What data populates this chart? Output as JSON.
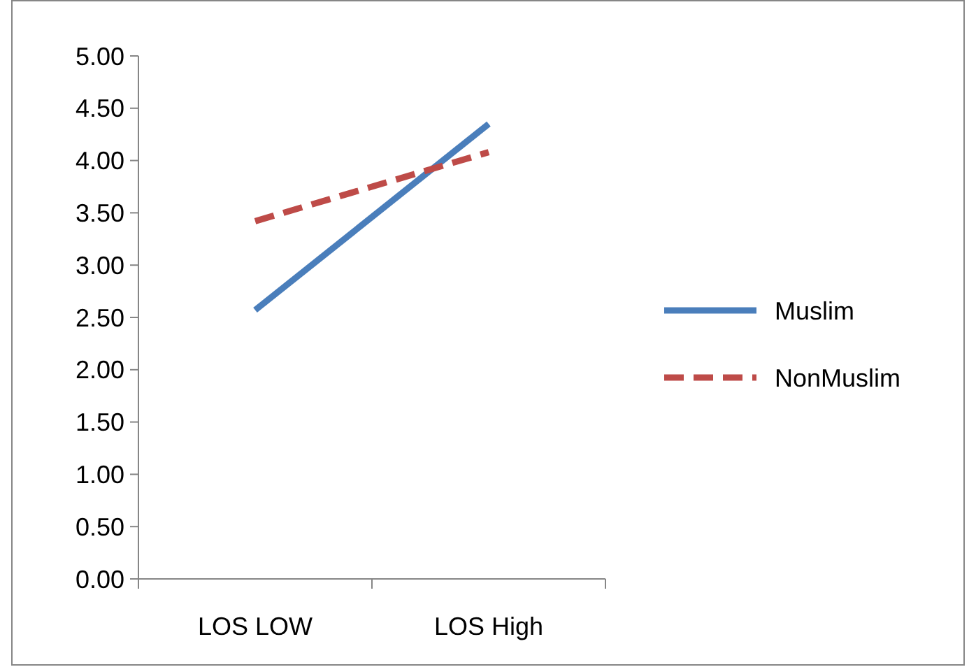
{
  "chart_data": {
    "type": "line",
    "categories": [
      "LOS LOW",
      "LOS High"
    ],
    "series": [
      {
        "name": "Muslim",
        "color": "#4a7ebb",
        "values": [
          2.57,
          4.35
        ],
        "line_style": "solid"
      },
      {
        "name": "NonMuslim",
        "color": "#be4b48",
        "values": [
          3.42,
          4.08
        ],
        "line_style": "dashed"
      }
    ],
    "ylim": [
      0,
      5
    ],
    "yticks": [
      {
        "value": 0,
        "label": "0.00"
      },
      {
        "value": 0.5,
        "label": "0.50"
      },
      {
        "value": 1,
        "label": "1.00"
      },
      {
        "value": 1.5,
        "label": "1.50"
      },
      {
        "value": 2,
        "label": "2.00"
      },
      {
        "value": 2.5,
        "label": "2.50"
      },
      {
        "value": 3,
        "label": "3.00"
      },
      {
        "value": 3.5,
        "label": "3.50"
      },
      {
        "value": 4,
        "label": "4.00"
      },
      {
        "value": 4.5,
        "label": "4.50"
      },
      {
        "value": 5,
        "label": "5.00"
      }
    ],
    "grid": false,
    "legend": "right",
    "marker": "none"
  }
}
